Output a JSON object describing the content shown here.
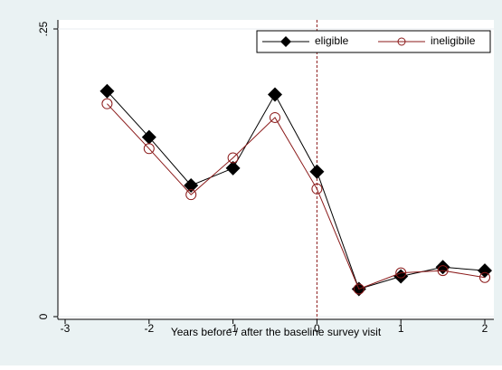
{
  "chart_data": {
    "type": "line",
    "x_label": "Years before / after the baseline survey visit",
    "x": [
      -2.5,
      -2,
      -1.5,
      -1,
      -0.5,
      0,
      0.5,
      1,
      1.5,
      2
    ],
    "series": [
      {
        "name": "eligible",
        "color": "#000000",
        "marker": "diamond",
        "values": [
          0.196,
          0.156,
          0.114,
          0.129,
          0.193,
          0.126,
          0.024,
          0.035,
          0.043,
          0.04
        ]
      },
      {
        "name": "ineligibile",
        "color": "#8b1a1a",
        "marker": "hollow-circle",
        "values": [
          0.185,
          0.146,
          0.106,
          0.138,
          0.173,
          0.111,
          0.024,
          0.038,
          0.04,
          0.034
        ]
      }
    ],
    "xlim": [
      -3,
      2
    ],
    "xticks": [
      -3,
      -2,
      -1,
      0,
      1,
      2
    ],
    "ylim": [
      0,
      0.25
    ],
    "yticks": [
      0,
      {
        "value": 0.25,
        "label": ".25"
      }
    ],
    "vline": 0,
    "vline_color": "#8b1a1a",
    "legend": "top-right"
  }
}
